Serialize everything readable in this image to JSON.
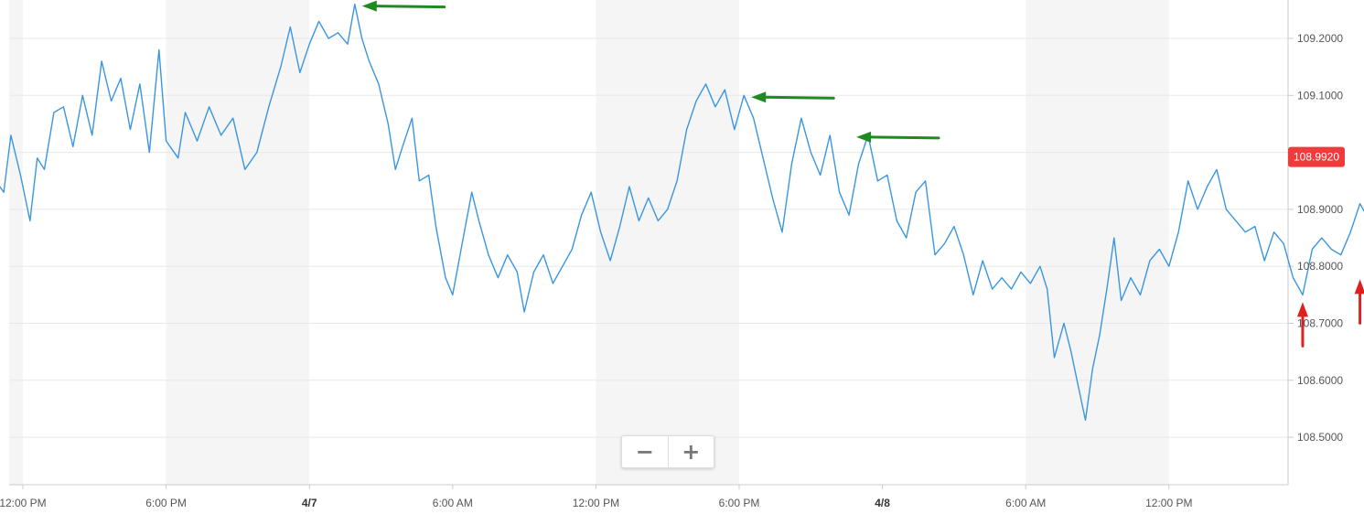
{
  "chart_data": {
    "type": "line",
    "x_tick_labels": [
      {
        "label": "12:00 PM",
        "bold": false
      },
      {
        "label": "6:00 PM",
        "bold": false
      },
      {
        "label": "4/7",
        "bold": true
      },
      {
        "label": "6:00 AM",
        "bold": false
      },
      {
        "label": "12:00 PM",
        "bold": false
      },
      {
        "label": "6:00 PM",
        "bold": false
      },
      {
        "label": "4/8",
        "bold": true
      },
      {
        "label": "6:00 AM",
        "bold": false
      },
      {
        "label": "12:00 PM",
        "bold": false
      }
    ],
    "x_range_hours": [
      -2,
      57
    ],
    "y_ticks": [
      "108.5000",
      "108.6000",
      "108.7000",
      "108.8000",
      "108.9000",
      "109.0000",
      "109.1000",
      "109.2000"
    ],
    "y_range": [
      108.42,
      109.27
    ],
    "grid": true,
    "night_bands_hours": [
      [
        6,
        12
      ],
      [
        24,
        30
      ],
      [
        42,
        48
      ]
    ],
    "series": [
      {
        "color": "#3a96e0",
        "points": [
          [
            -2,
            109.2
          ],
          [
            -1.6,
            109.19
          ],
          [
            -1.3,
            108.96
          ],
          [
            -0.8,
            108.93
          ],
          [
            -0.5,
            109.03
          ],
          [
            -0.1,
            108.96
          ],
          [
            0.3,
            108.88
          ],
          [
            0.6,
            108.99
          ],
          [
            0.9,
            108.97
          ],
          [
            1.3,
            109.07
          ],
          [
            1.7,
            109.08
          ],
          [
            2.1,
            109.01
          ],
          [
            2.5,
            109.1
          ],
          [
            2.9,
            109.03
          ],
          [
            3.3,
            109.16
          ],
          [
            3.7,
            109.09
          ],
          [
            4.1,
            109.13
          ],
          [
            4.5,
            109.04
          ],
          [
            4.9,
            109.12
          ],
          [
            5.3,
            109.0
          ],
          [
            5.7,
            109.18
          ],
          [
            6.0,
            109.02
          ],
          [
            6.5,
            108.99
          ],
          [
            6.8,
            109.07
          ],
          [
            7.3,
            109.02
          ],
          [
            7.8,
            109.08
          ],
          [
            8.3,
            109.03
          ],
          [
            8.8,
            109.06
          ],
          [
            9.3,
            108.97
          ],
          [
            9.8,
            109.0
          ],
          [
            10.3,
            109.08
          ],
          [
            10.8,
            109.15
          ],
          [
            11.2,
            109.22
          ],
          [
            11.6,
            109.14
          ],
          [
            12.0,
            109.19
          ],
          [
            12.4,
            109.23
          ],
          [
            12.8,
            109.2
          ],
          [
            13.2,
            109.21
          ],
          [
            13.6,
            109.19
          ],
          [
            13.9,
            109.26
          ],
          [
            14.2,
            109.2
          ],
          [
            14.5,
            109.16
          ],
          [
            14.9,
            109.12
          ],
          [
            15.3,
            109.05
          ],
          [
            15.6,
            108.97
          ],
          [
            15.9,
            109.01
          ],
          [
            16.3,
            109.06
          ],
          [
            16.6,
            108.95
          ],
          [
            17.0,
            108.96
          ],
          [
            17.3,
            108.87
          ],
          [
            17.7,
            108.78
          ],
          [
            18.0,
            108.75
          ],
          [
            18.4,
            108.84
          ],
          [
            18.8,
            108.93
          ],
          [
            19.1,
            108.88
          ],
          [
            19.5,
            108.82
          ],
          [
            19.9,
            108.78
          ],
          [
            20.3,
            108.82
          ],
          [
            20.7,
            108.79
          ],
          [
            21.0,
            108.72
          ],
          [
            21.4,
            108.79
          ],
          [
            21.8,
            108.82
          ],
          [
            22.2,
            108.77
          ],
          [
            22.6,
            108.8
          ],
          [
            23.0,
            108.83
          ],
          [
            23.4,
            108.89
          ],
          [
            23.8,
            108.93
          ],
          [
            24.2,
            108.86
          ],
          [
            24.6,
            108.81
          ],
          [
            25.0,
            108.87
          ],
          [
            25.4,
            108.94
          ],
          [
            25.8,
            108.88
          ],
          [
            26.2,
            108.92
          ],
          [
            26.6,
            108.88
          ],
          [
            27.0,
            108.9
          ],
          [
            27.4,
            108.95
          ],
          [
            27.8,
            109.04
          ],
          [
            28.2,
            109.09
          ],
          [
            28.6,
            109.12
          ],
          [
            29.0,
            109.08
          ],
          [
            29.4,
            109.11
          ],
          [
            29.8,
            109.04
          ],
          [
            30.2,
            109.1
          ],
          [
            30.6,
            109.06
          ],
          [
            31.0,
            108.99
          ],
          [
            31.4,
            108.92
          ],
          [
            31.8,
            108.86
          ],
          [
            32.2,
            108.98
          ],
          [
            32.6,
            109.06
          ],
          [
            33.0,
            109.0
          ],
          [
            33.4,
            108.96
          ],
          [
            33.8,
            109.03
          ],
          [
            34.2,
            108.93
          ],
          [
            34.6,
            108.89
          ],
          [
            35.0,
            108.98
          ],
          [
            35.4,
            109.03
          ],
          [
            35.8,
            108.95
          ],
          [
            36.2,
            108.96
          ],
          [
            36.6,
            108.88
          ],
          [
            37.0,
            108.85
          ],
          [
            37.4,
            108.93
          ],
          [
            37.8,
            108.95
          ],
          [
            38.2,
            108.82
          ],
          [
            38.6,
            108.84
          ],
          [
            39.0,
            108.87
          ],
          [
            39.4,
            108.82
          ],
          [
            39.8,
            108.75
          ],
          [
            40.2,
            108.81
          ],
          [
            40.6,
            108.76
          ],
          [
            41.0,
            108.78
          ],
          [
            41.4,
            108.76
          ],
          [
            41.8,
            108.79
          ],
          [
            42.2,
            108.77
          ],
          [
            42.6,
            108.8
          ],
          [
            42.9,
            108.76
          ],
          [
            43.2,
            108.64
          ],
          [
            43.6,
            108.7
          ],
          [
            43.9,
            108.65
          ],
          [
            44.2,
            108.59
          ],
          [
            44.5,
            108.53
          ],
          [
            44.8,
            108.62
          ],
          [
            45.1,
            108.68
          ],
          [
            45.4,
            108.76
          ],
          [
            45.7,
            108.85
          ],
          [
            46.0,
            108.74
          ],
          [
            46.4,
            108.78
          ],
          [
            46.8,
            108.75
          ],
          [
            47.2,
            108.81
          ],
          [
            47.6,
            108.83
          ],
          [
            48.0,
            108.8
          ],
          [
            48.4,
            108.86
          ],
          [
            48.8,
            108.95
          ],
          [
            49.2,
            108.9
          ],
          [
            49.6,
            108.94
          ],
          [
            50.0,
            108.97
          ],
          [
            50.4,
            108.9
          ],
          [
            50.8,
            108.88
          ],
          [
            51.2,
            108.86
          ],
          [
            51.6,
            108.87
          ],
          [
            52.0,
            108.81
          ],
          [
            52.4,
            108.86
          ],
          [
            52.8,
            108.84
          ],
          [
            53.2,
            108.78
          ],
          [
            53.6,
            108.75
          ],
          [
            54.0,
            108.83
          ],
          [
            54.4,
            108.85
          ],
          [
            54.8,
            108.83
          ],
          [
            55.2,
            108.82
          ],
          [
            55.6,
            108.86
          ],
          [
            56.0,
            108.91
          ],
          [
            56.4,
            108.88
          ],
          [
            56.8,
            108.86
          ],
          [
            57.2,
            108.9
          ],
          [
            57.6,
            108.87
          ],
          [
            58.2,
            108.9
          ],
          [
            58.6,
            108.96
          ],
          [
            59.0,
            108.992
          ]
        ]
      }
    ],
    "last_value": 108.992,
    "last_value_label": "108.9920",
    "annotations": {
      "green_arrows": [
        {
          "x": 13.9,
          "y": 109.26
        },
        {
          "x": 30.2,
          "y": 109.1
        },
        {
          "x": 34.6,
          "y": 109.03
        }
      ],
      "red_arrows": [
        {
          "x": 53.6,
          "y": 108.75
        },
        {
          "x": 56.0,
          "y": 108.79
        },
        {
          "x": 58.6,
          "y": 108.86
        }
      ]
    }
  },
  "zoom": {
    "minus_label": "−",
    "plus_label": "+"
  },
  "colors": {
    "line": "#3a96e0",
    "band": "#f5f5f5",
    "last_value_badge": "#ef3b3b",
    "green_arrow": "#1f8a1f",
    "red_arrow": "#e01f1f"
  }
}
